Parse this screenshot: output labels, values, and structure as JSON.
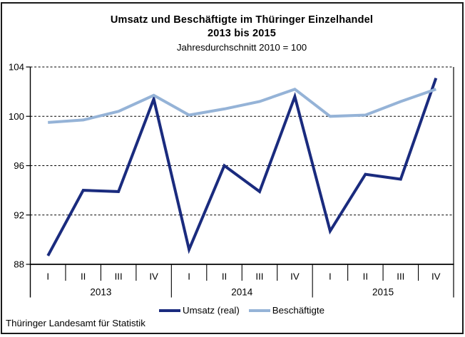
{
  "chart": {
    "title_line1": "Umsatz und Beschäftigte im Thüringer Einzelhandel",
    "title_line2": "2013 bis 2015",
    "subtitle": "Jahresdurchschnitt 2010 = 100",
    "source": "Thüringer Landesamt für Statistik"
  },
  "chart_data": {
    "type": "line",
    "title": "Umsatz und Beschäftigte im Thüringer Einzelhandel 2013 bis 2015",
    "subtitle": "Jahresdurchschnitt 2010 = 100",
    "categories": [
      "I",
      "II",
      "III",
      "IV",
      "I",
      "II",
      "III",
      "IV",
      "I",
      "II",
      "III",
      "IV"
    ],
    "year_groups": [
      {
        "label": "2013",
        "start": 0,
        "count": 4
      },
      {
        "label": "2014",
        "start": 4,
        "count": 4
      },
      {
        "label": "2015",
        "start": 8,
        "count": 4
      }
    ],
    "series": [
      {
        "name": "Umsatz (real)",
        "color": "#1a2b7e",
        "values": [
          88.7,
          94.0,
          93.9,
          101.4,
          89.2,
          96.0,
          93.9,
          101.6,
          90.7,
          95.3,
          94.9,
          103.1
        ]
      },
      {
        "name": "Beschäftigte",
        "color": "#95b3d7",
        "values": [
          99.5,
          99.7,
          100.4,
          101.7,
          100.1,
          100.6,
          101.2,
          102.2,
          100.0,
          100.1,
          101.2,
          102.2
        ]
      }
    ],
    "ylim": [
      88,
      104
    ],
    "yticks": [
      88,
      92,
      96,
      100,
      104
    ],
    "xlabel": "",
    "ylabel": "",
    "grid": "horizontal-dashed",
    "legend_position": "bottom"
  }
}
